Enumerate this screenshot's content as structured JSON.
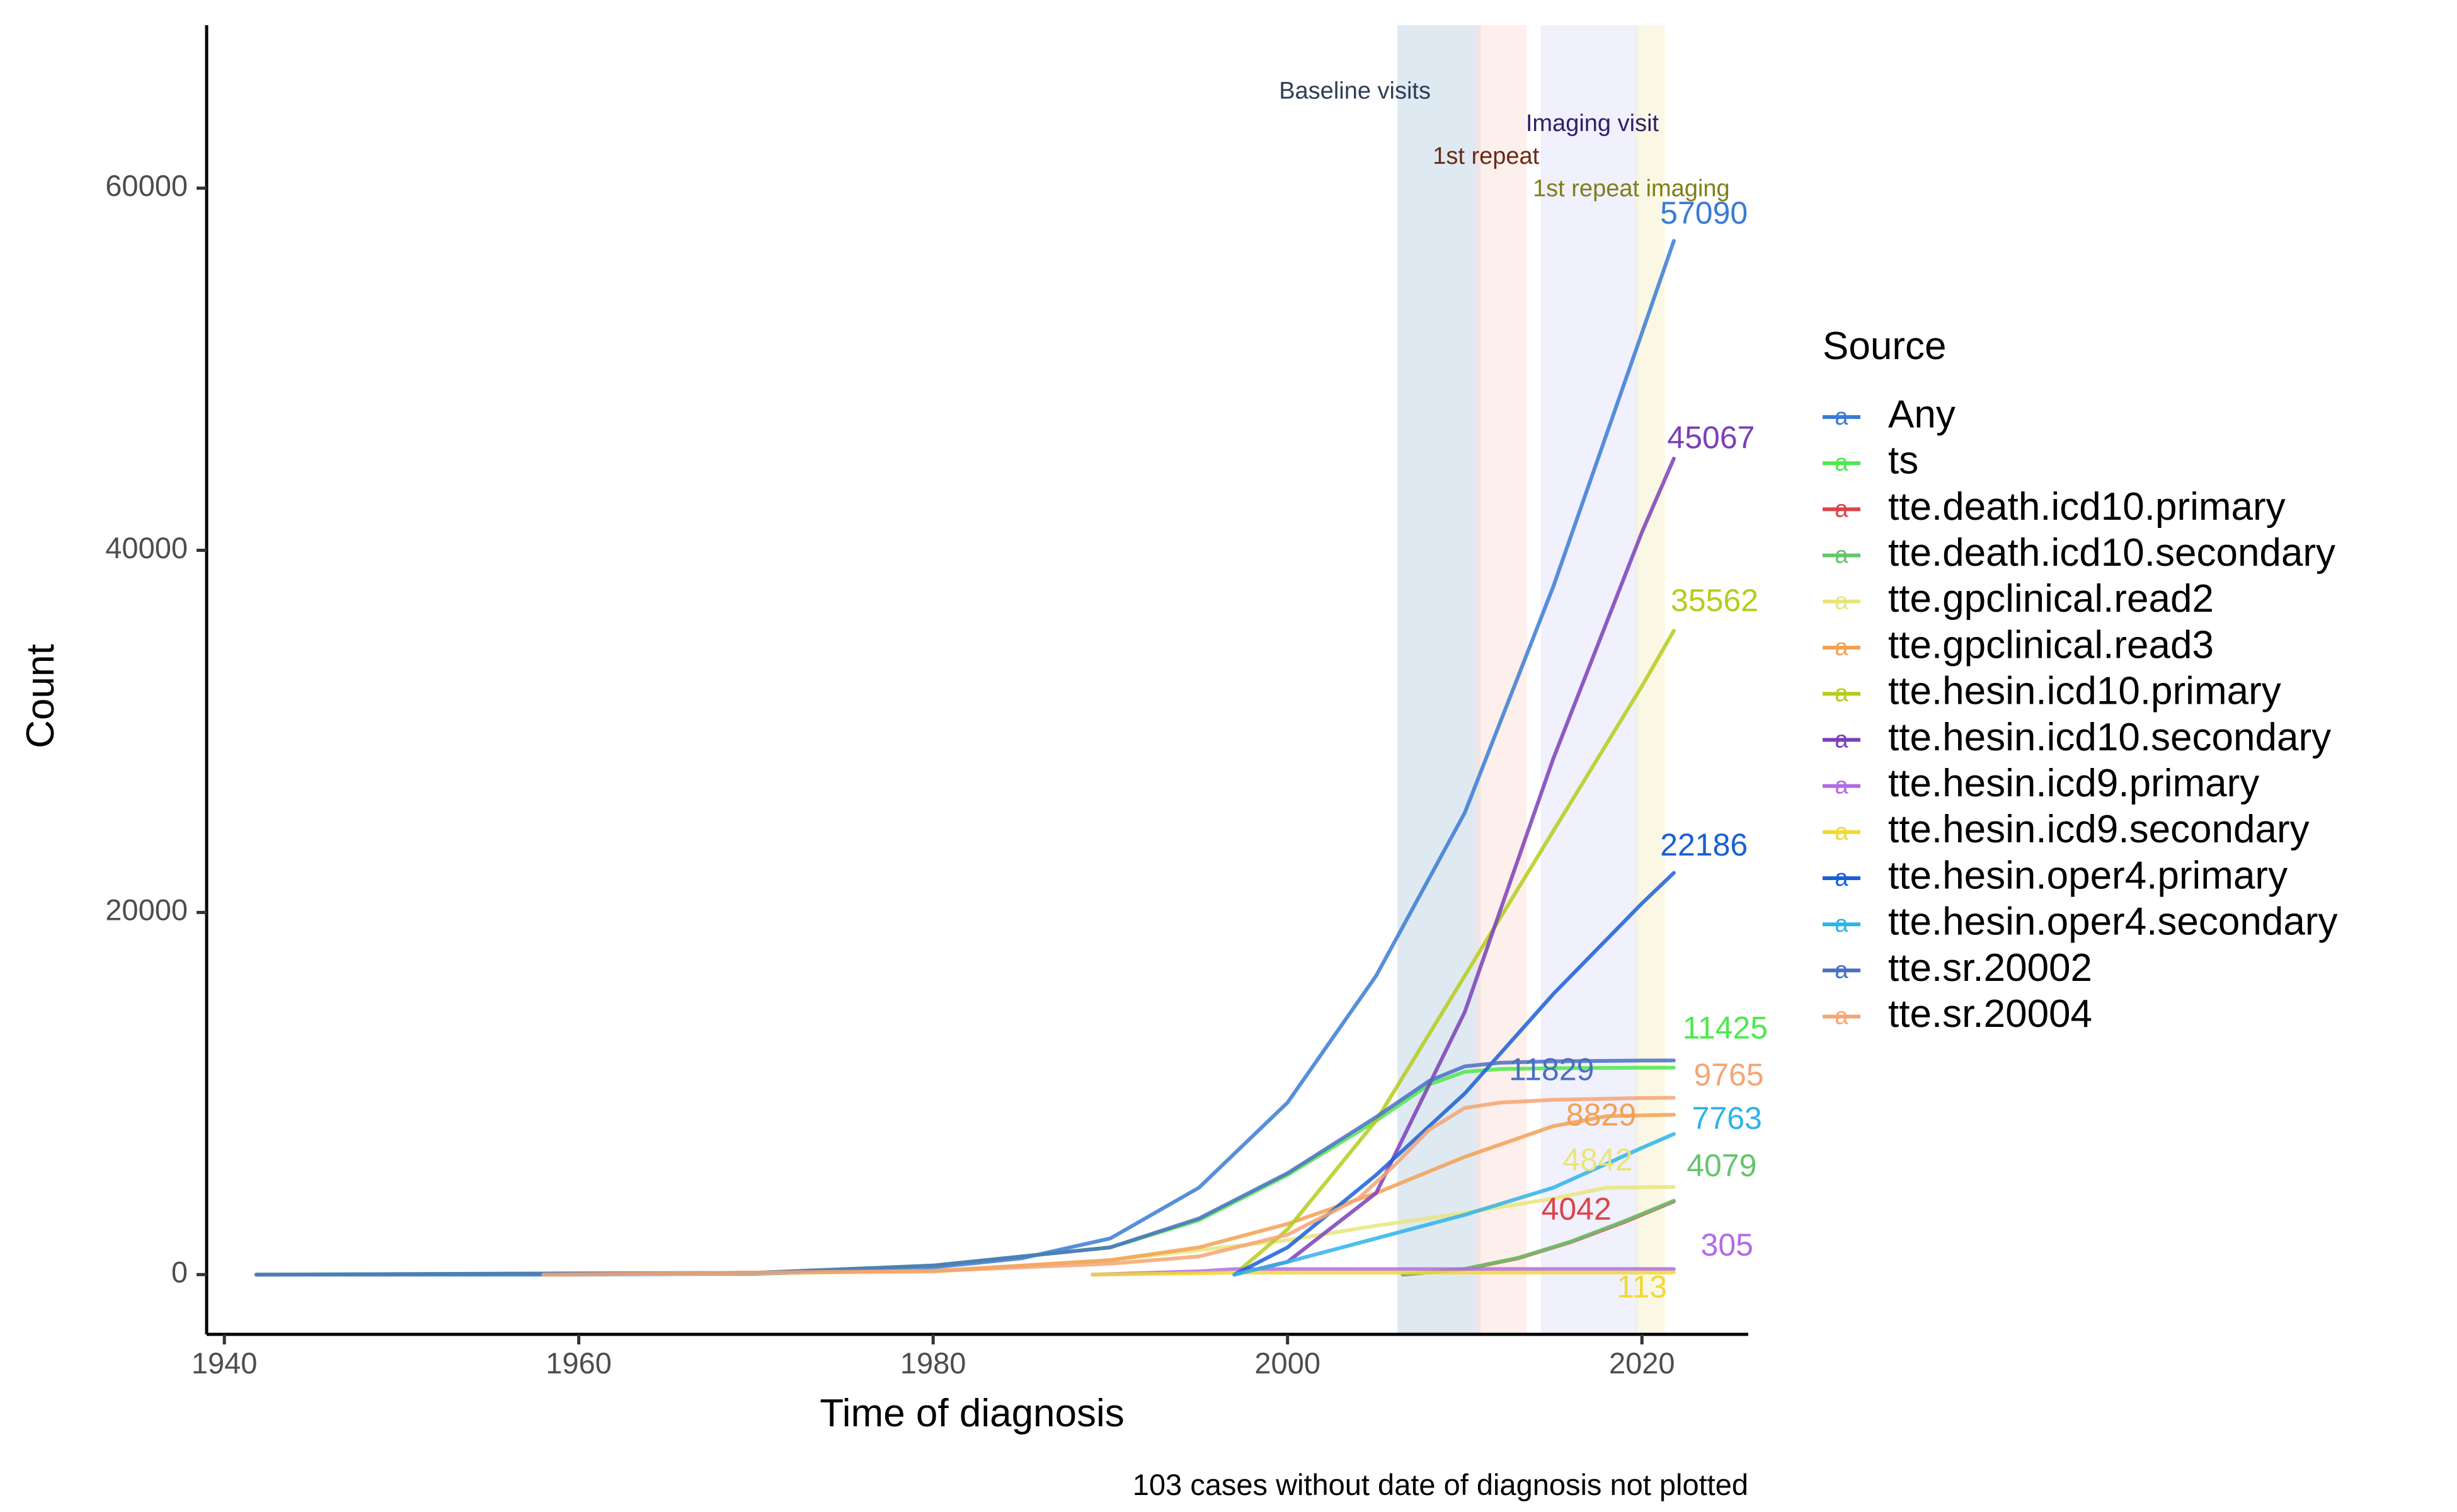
{
  "chart_data": {
    "type": "line",
    "xlabel": "Time of diagnosis",
    "ylabel": "Count",
    "caption": "103 cases without date of diagnosis not plotted",
    "xlim": [
      1939,
      2026
    ],
    "ylim": [
      -3300,
      69000
    ],
    "x_ticks": [
      1940,
      1960,
      1980,
      2000,
      2020
    ],
    "y_ticks": [
      0,
      20000,
      40000,
      60000
    ],
    "grid": false,
    "legend": {
      "title": "Source",
      "placement": "right",
      "key_glyph": "a",
      "entries": [
        {
          "name": "Any",
          "color": "#3A7BD5"
        },
        {
          "name": "ts",
          "color": "#4DE84D"
        },
        {
          "name": "tte.death.icd10.primary",
          "color": "#D9454B"
        },
        {
          "name": "tte.death.icd10.secondary",
          "color": "#66C46E"
        },
        {
          "name": "tte.gpclinical.read2",
          "color": "#E9E57A"
        },
        {
          "name": "tte.gpclinical.read3",
          "color": "#F2A154"
        },
        {
          "name": "tte.hesin.icd10.primary",
          "color": "#B5CC1A"
        },
        {
          "name": "tte.hesin.icd10.secondary",
          "color": "#7B3FB8"
        },
        {
          "name": "tte.hesin.icd9.primary",
          "color": "#B36BE3"
        },
        {
          "name": "tte.hesin.icd9.secondary",
          "color": "#F2D833"
        },
        {
          "name": "tte.hesin.oper4.primary",
          "color": "#1A5FD6"
        },
        {
          "name": "tte.hesin.oper4.secondary",
          "color": "#2FB3E6"
        },
        {
          "name": "tte.sr.20002",
          "color": "#4A6FC2"
        },
        {
          "name": "tte.sr.20004",
          "color": "#F5A574"
        }
      ]
    },
    "periods": [
      {
        "label": "Baseline visits",
        "start": 2006.2,
        "end": 2010.9,
        "color": "#C5D7E8",
        "label_color": "#2E3E55",
        "label_x": 2003.8,
        "label_y": 65300
      },
      {
        "label": "1st repeat",
        "start": 2010.6,
        "end": 2013.5,
        "color": "#FCE1DA",
        "label_color": "#6A2A17",
        "label_x": 2011.2,
        "label_y": 61700
      },
      {
        "label": "Imaging visit",
        "start": 2014.3,
        "end": 2019.8,
        "color": "#E6E3FB",
        "label_color": "#2F1F6A",
        "label_x": 2017.2,
        "label_y": 63500
      },
      {
        "label": "1st repeat imaging",
        "start": 2019.6,
        "end": 2021.3,
        "color": "#F6F3D0",
        "label_color": "#7F7F1A",
        "label_x": 2019.4,
        "label_y": 59900
      }
    ],
    "series": [
      {
        "name": "Any",
        "color": "#3A7BD5",
        "end_label": "57090",
        "label_x": 2023.5,
        "label_y": 58500,
        "x": [
          1941.8,
          1960,
          1970,
          1975,
          1980,
          1985,
          1990,
          1995,
          2000,
          2005,
          2010,
          2015,
          2020,
          2021.8
        ],
        "y": [
          0,
          0,
          50,
          150,
          400,
          900,
          2000,
          4800,
          9500,
          16500,
          25500,
          38000,
          52000,
          57090
        ]
      },
      {
        "name": "ts",
        "color": "#4DE84D",
        "end_label": "11425",
        "label_x": 2024.7,
        "label_y": 13500,
        "x": [
          1941.8,
          1970,
          1980,
          1990,
          1995,
          2000,
          2005,
          2008,
          2010,
          2012,
          2015,
          2020,
          2021.8
        ],
        "y": [
          0,
          100,
          500,
          1500,
          3000,
          5500,
          8500,
          10500,
          11200,
          11350,
          11400,
          11420,
          11425
        ]
      },
      {
        "name": "tte.death.icd10.primary",
        "color": "#D9454B",
        "end_label": "4042",
        "label_x": 2016.3,
        "label_y": 3500,
        "x": [
          2006.5,
          2010,
          2013,
          2016,
          2019,
          2021.8
        ],
        "y": [
          0,
          300,
          900,
          1800,
          2900,
          4042
        ]
      },
      {
        "name": "tte.death.icd10.secondary",
        "color": "#66C46E",
        "end_label": "4079",
        "label_x": 2024.5,
        "label_y": 5900,
        "x": [
          2006.5,
          2010,
          2013,
          2016,
          2019,
          2021.8
        ],
        "y": [
          0,
          310,
          920,
          1830,
          2950,
          4079
        ]
      },
      {
        "name": "tte.gpclinical.read2",
        "color": "#E9E57A",
        "end_label": "4842",
        "label_x": 2017.5,
        "label_y": 6200,
        "x": [
          1958,
          1980,
          1990,
          2000,
          2005,
          2010,
          2015,
          2018,
          2021.8
        ],
        "y": [
          0,
          150,
          800,
          1900,
          2700,
          3400,
          4200,
          4800,
          4842
        ]
      },
      {
        "name": "tte.gpclinical.read3",
        "color": "#F2A154",
        "end_label": "8829",
        "label_x": 2017.7,
        "label_y": 8700,
        "x": [
          1958,
          1980,
          1990,
          1995,
          2000,
          2005,
          2010,
          2015,
          2018,
          2021.8
        ],
        "y": [
          0,
          200,
          800,
          1500,
          2800,
          4500,
          6500,
          8200,
          8750,
          8829
        ]
      },
      {
        "name": "tte.hesin.icd10.primary",
        "color": "#B5CC1A",
        "end_label": "35562",
        "label_x": 2024.1,
        "label_y": 37100,
        "x": [
          1997,
          2000,
          2005,
          2010,
          2015,
          2020,
          2021.8
        ],
        "y": [
          0,
          2500,
          8500,
          16500,
          24500,
          32500,
          35562
        ]
      },
      {
        "name": "tte.hesin.icd10.secondary",
        "color": "#7B3FB8",
        "end_label": "45067",
        "label_x": 2023.9,
        "label_y": 46100,
        "x": [
          1997,
          2000,
          2005,
          2010,
          2015,
          2020,
          2021.8
        ],
        "y": [
          0,
          700,
          4500,
          14500,
          28500,
          41000,
          45067
        ]
      },
      {
        "name": "tte.hesin.icd9.primary",
        "color": "#B36BE3",
        "end_label": "305",
        "label_x": 2024.8,
        "label_y": 1500,
        "x": [
          1989,
          1995,
          1997,
          2021.8
        ],
        "y": [
          0,
          180,
          300,
          305
        ]
      },
      {
        "name": "tte.hesin.icd9.secondary",
        "color": "#F2D833",
        "end_label": "113",
        "label_x": 2020.0,
        "label_y": -800,
        "x": [
          1989,
          1995,
          1997,
          2021.8
        ],
        "y": [
          0,
          70,
          110,
          113
        ]
      },
      {
        "name": "tte.hesin.oper4.primary",
        "color": "#1A5FD6",
        "end_label": "22186",
        "label_x": 2023.5,
        "label_y": 23600,
        "x": [
          1997,
          2000,
          2005,
          2010,
          2015,
          2020,
          2021.8
        ],
        "y": [
          0,
          1500,
          5500,
          10000,
          15500,
          20500,
          22186
        ]
      },
      {
        "name": "tte.hesin.oper4.secondary",
        "color": "#2FB3E6",
        "end_label": "7763",
        "label_x": 2024.8,
        "label_y": 8500,
        "x": [
          1997,
          2000,
          2005,
          2010,
          2015,
          2020,
          2021.8
        ],
        "y": [
          0,
          700,
          2000,
          3300,
          4800,
          7000,
          7763
        ]
      },
      {
        "name": "tte.sr.20002",
        "color": "#4A6FC2",
        "end_label": "11829",
        "label_x": 2014.9,
        "label_y": 11200,
        "x": [
          1941.8,
          1970,
          1980,
          1990,
          1995,
          2000,
          2005,
          2008,
          2010,
          2012,
          2015,
          2020,
          2021.8
        ],
        "y": [
          0,
          100,
          500,
          1500,
          3100,
          5600,
          8700,
          10700,
          11500,
          11700,
          11780,
          11820,
          11829
        ]
      },
      {
        "name": "tte.sr.20004",
        "color": "#F5A574",
        "end_label": "9765",
        "label_x": 2024.9,
        "label_y": 10900,
        "x": [
          1958,
          1980,
          1990,
          1995,
          2000,
          2004,
          2006,
          2008,
          2010,
          2012,
          2015,
          2020,
          2021.8
        ],
        "y": [
          0,
          200,
          600,
          1000,
          2200,
          4200,
          6000,
          8000,
          9200,
          9500,
          9650,
          9750,
          9765
        ]
      }
    ]
  }
}
